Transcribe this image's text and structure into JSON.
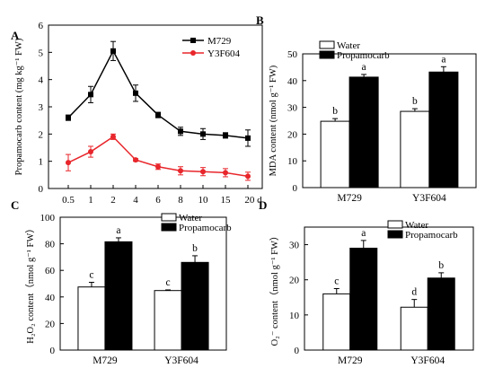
{
  "colors": {
    "m729": "#000000",
    "y3f604": "#e8262b",
    "water_fill": "#ffffff",
    "treat_fill": "#000000"
  },
  "chart_data": [
    {
      "panel": "A",
      "type": "line",
      "categories": [
        "0.5",
        "1",
        "2",
        "4",
        "6",
        "8",
        "10",
        "15",
        "20 d"
      ],
      "ylabel": "Propamocarb content (mg kg⁻¹ FW)",
      "ylim": [
        0,
        6
      ],
      "yticks": [
        "0",
        "1",
        "2",
        "3",
        "4",
        "5",
        "6"
      ],
      "legend_position": "top-right",
      "series": [
        {
          "name": "M729",
          "color": "#000000",
          "marker": "square",
          "values": [
            2.6,
            3.45,
            5.05,
            3.5,
            2.7,
            2.1,
            2.0,
            1.95,
            1.85
          ],
          "errors": [
            0.1,
            0.3,
            0.35,
            0.3,
            0.1,
            0.15,
            0.2,
            0.1,
            0.3
          ]
        },
        {
          "name": "Y3F604",
          "color": "#e8262b",
          "marker": "circle",
          "values": [
            0.95,
            1.35,
            1.9,
            1.05,
            0.8,
            0.65,
            0.62,
            0.58,
            0.45
          ],
          "errors": [
            0.3,
            0.2,
            0.1,
            0.05,
            0.1,
            0.15,
            0.15,
            0.15,
            0.15
          ]
        }
      ]
    },
    {
      "panel": "B",
      "type": "bar",
      "categories": [
        "M729",
        "Y3F604"
      ],
      "ylabel": "MDA content (nmol g⁻¹ FW)",
      "ylim": [
        0,
        50
      ],
      "yticks": [
        "0",
        "10",
        "20",
        "30",
        "40",
        "50"
      ],
      "legend_position": "top-left",
      "series": [
        {
          "name": "Water",
          "values": [
            24.8,
            28.5
          ],
          "errors": [
            1.0,
            1.0
          ],
          "letters": [
            "b",
            "b"
          ]
        },
        {
          "name": "Propamocarb",
          "values": [
            41.3,
            43.2
          ],
          "errors": [
            1.0,
            2.0
          ],
          "letters": [
            "a",
            "a"
          ]
        }
      ]
    },
    {
      "panel": "C",
      "type": "bar",
      "categories": [
        "M729",
        "Y3F604"
      ],
      "ylabel": "H₂O₂ content（nmol g⁻¹ FW）",
      "ylim": [
        0,
        100
      ],
      "yticks": [
        "0",
        "20",
        "40",
        "60",
        "80",
        "100"
      ],
      "legend_position": "top-right",
      "series": [
        {
          "name": "Water",
          "values": [
            47.5,
            44.8
          ],
          "errors": [
            3.5,
            0.5
          ],
          "letters": [
            "c",
            "c"
          ]
        },
        {
          "name": "Propamocarb",
          "values": [
            81.5,
            66.0
          ],
          "errors": [
            3.0,
            5.0
          ],
          "letters": [
            "a",
            "b"
          ]
        }
      ]
    },
    {
      "panel": "D",
      "type": "bar",
      "categories": [
        "M729",
        "Y3F604"
      ],
      "ylabel": "O₂⁻ content（nmol g⁻¹ FW）",
      "ylim": [
        0,
        35
      ],
      "yticks": [
        "0",
        "10",
        "20",
        "30"
      ],
      "legend_position": "top",
      "series": [
        {
          "name": "Water",
          "values": [
            16.0,
            12.2
          ],
          "errors": [
            1.5,
            2.2
          ],
          "letters": [
            "c",
            "d"
          ]
        },
        {
          "name": "Propamocarb",
          "values": [
            29.0,
            20.5
          ],
          "errors": [
            2.2,
            1.5
          ],
          "letters": [
            "a",
            "b"
          ]
        }
      ]
    }
  ]
}
